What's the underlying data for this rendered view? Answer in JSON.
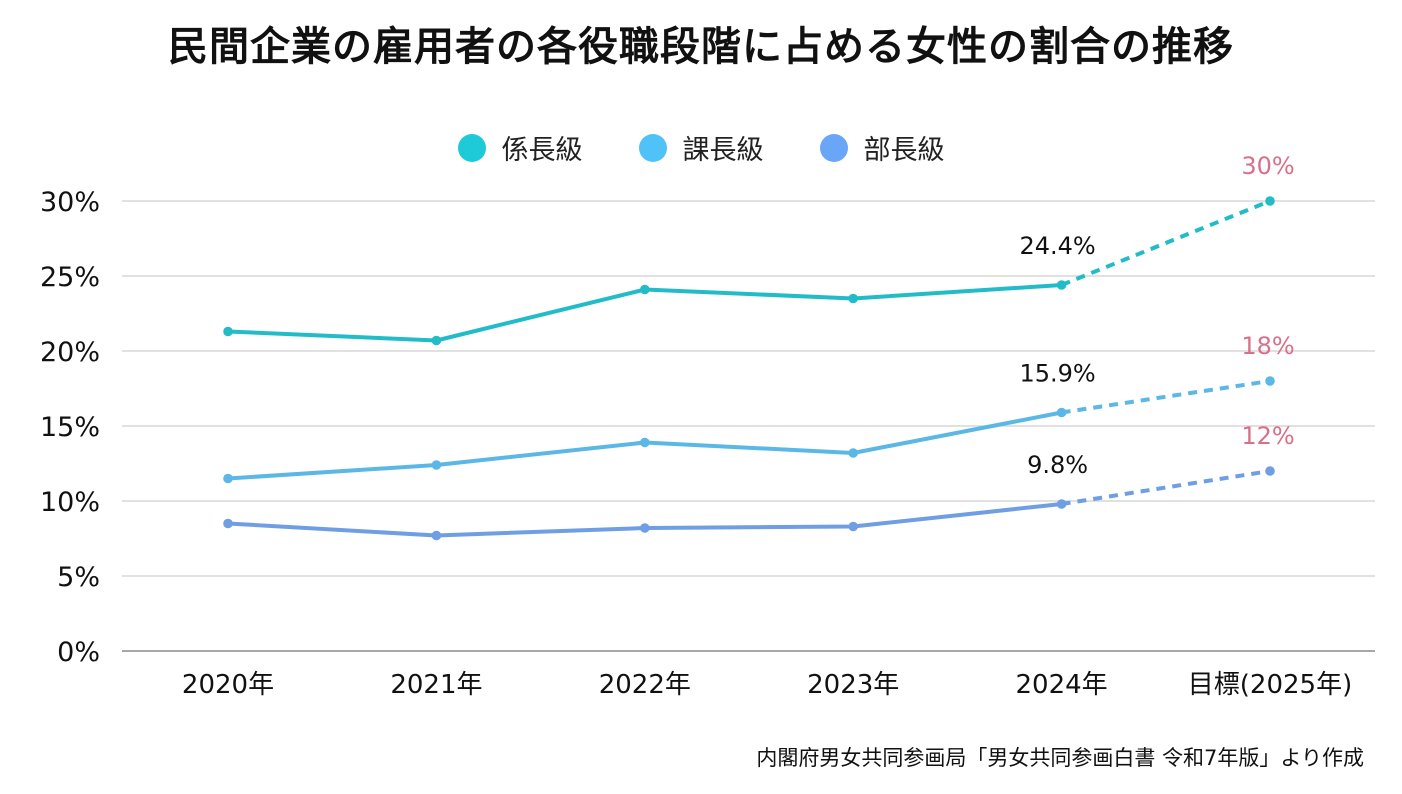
{
  "chart_data": {
    "type": "line",
    "title": "民間企業の雇用者の各役職段階に占める女性の割合の推移",
    "xlabel": "",
    "ylabel": "",
    "categories": [
      "2020年",
      "2021年",
      "2022年",
      "2023年",
      "2024年",
      "目標(2025年)"
    ],
    "ylim": [
      0,
      30
    ],
    "yticks": [
      0,
      5,
      10,
      15,
      20,
      25,
      30
    ],
    "ytick_labels": [
      "0%",
      "5%",
      "10%",
      "15%",
      "20%",
      "25%",
      "30%"
    ],
    "grid": true,
    "legend_position": "top-center",
    "series": [
      {
        "name": "係長級",
        "color": "#22bcc8",
        "legend_color": "#1ec9d8",
        "values": [
          21.3,
          20.7,
          24.1,
          23.5,
          24.4,
          30
        ],
        "actual_label": "24.4%",
        "target_label": "30%"
      },
      {
        "name": "課長級",
        "color": "#5bb8e6",
        "legend_color": "#4fc3f7",
        "values": [
          11.5,
          12.4,
          13.9,
          13.2,
          15.9,
          18
        ],
        "actual_label": "15.9%",
        "target_label": "18%"
      },
      {
        "name": "部長級",
        "color": "#6f9ee4",
        "legend_color": "#6aa6f8",
        "values": [
          8.5,
          7.7,
          8.2,
          8.3,
          9.8,
          12
        ],
        "actual_label": "9.8%",
        "target_label": "12%"
      }
    ],
    "target_segment": "dashed line from 2024年 to 目標(2025年)",
    "target_label_color": "#d9708a",
    "source": "内閣府男女共同参画局「男女共同参画白書 令和7年版」より作成"
  },
  "legend": [
    {
      "label": "係長級"
    },
    {
      "label": "課長級"
    },
    {
      "label": "部長級"
    }
  ]
}
